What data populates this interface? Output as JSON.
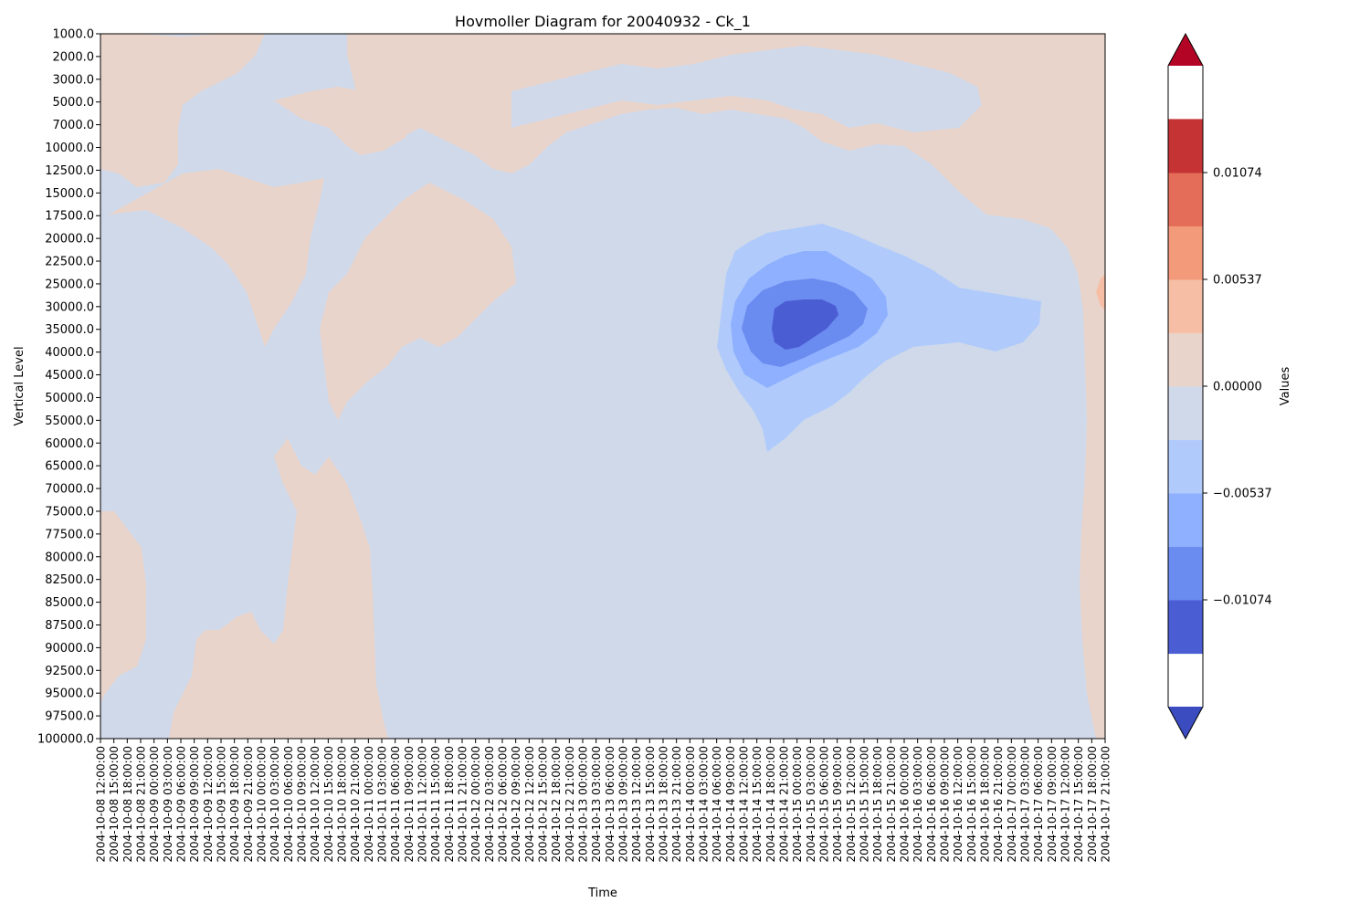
{
  "chart_data": {
    "type": "heatmap",
    "subtype": "filled-contour",
    "title": "Hovmoller Diagram for 20040932 - Ck_1",
    "xlabel": "Time",
    "ylabel": "Vertical Level",
    "x_ticks": [
      "2004-10-08 12:00:00",
      "2004-10-08 15:00:00",
      "2004-10-08 18:00:00",
      "2004-10-08 21:00:00",
      "2004-10-09 00:00:00",
      "2004-10-09 03:00:00",
      "2004-10-09 06:00:00",
      "2004-10-09 09:00:00",
      "2004-10-09 12:00:00",
      "2004-10-09 15:00:00",
      "2004-10-09 18:00:00",
      "2004-10-09 21:00:00",
      "2004-10-10 00:00:00",
      "2004-10-10 03:00:00",
      "2004-10-10 06:00:00",
      "2004-10-10 09:00:00",
      "2004-10-10 12:00:00",
      "2004-10-10 15:00:00",
      "2004-10-10 18:00:00",
      "2004-10-10 21:00:00",
      "2004-10-11 00:00:00",
      "2004-10-11 03:00:00",
      "2004-10-11 06:00:00",
      "2004-10-11 09:00:00",
      "2004-10-11 12:00:00",
      "2004-10-11 15:00:00",
      "2004-10-11 18:00:00",
      "2004-10-11 21:00:00",
      "2004-10-12 00:00:00",
      "2004-10-12 03:00:00",
      "2004-10-12 06:00:00",
      "2004-10-12 09:00:00",
      "2004-10-12 12:00:00",
      "2004-10-12 15:00:00",
      "2004-10-12 18:00:00",
      "2004-10-12 21:00:00",
      "2004-10-13 00:00:00",
      "2004-10-13 03:00:00",
      "2004-10-13 06:00:00",
      "2004-10-13 09:00:00",
      "2004-10-13 12:00:00",
      "2004-10-13 15:00:00",
      "2004-10-13 18:00:00",
      "2004-10-13 21:00:00",
      "2004-10-14 00:00:00",
      "2004-10-14 03:00:00",
      "2004-10-14 06:00:00",
      "2004-10-14 09:00:00",
      "2004-10-14 12:00:00",
      "2004-10-14 15:00:00",
      "2004-10-14 18:00:00",
      "2004-10-14 21:00:00",
      "2004-10-15 00:00:00",
      "2004-10-15 03:00:00",
      "2004-10-15 06:00:00",
      "2004-10-15 09:00:00",
      "2004-10-15 12:00:00",
      "2004-10-15 15:00:00",
      "2004-10-15 18:00:00",
      "2004-10-15 21:00:00",
      "2004-10-16 00:00:00",
      "2004-10-16 03:00:00",
      "2004-10-16 06:00:00",
      "2004-10-16 09:00:00",
      "2004-10-16 12:00:00",
      "2004-10-16 15:00:00",
      "2004-10-16 18:00:00",
      "2004-10-16 21:00:00",
      "2004-10-17 00:00:00",
      "2004-10-17 03:00:00",
      "2004-10-17 06:00:00",
      "2004-10-17 09:00:00",
      "2004-10-17 12:00:00",
      "2004-10-17 15:00:00",
      "2004-10-17 18:00:00",
      "2004-10-17 21:00:00"
    ],
    "y_ticks": [
      "1000.0",
      "2000.0",
      "3000.0",
      "5000.0",
      "7000.0",
      "10000.0",
      "12500.0",
      "15000.0",
      "17500.0",
      "20000.0",
      "22500.0",
      "25000.0",
      "30000.0",
      "35000.0",
      "40000.0",
      "45000.0",
      "50000.0",
      "55000.0",
      "60000.0",
      "65000.0",
      "70000.0",
      "75000.0",
      "77500.0",
      "80000.0",
      "82500.0",
      "85000.0",
      "87500.0",
      "90000.0",
      "92500.0",
      "95000.0",
      "97500.0",
      "100000.0"
    ],
    "y_axis": "categorical, 1000.0 at top, 100000.0 at bottom",
    "colorbar": {
      "label": "Values",
      "tick_labels": [
        "0.01074",
        "0.00537",
        "0.00000",
        "−0.00537",
        "−0.01074"
      ],
      "tick_values": [
        0.01074,
        0.00537,
        0.0,
        -0.00537,
        -0.01074
      ],
      "levels": [
        -0.01611,
        -0.01343,
        -0.01074,
        -0.00806,
        -0.00537,
        -0.00269,
        0.0,
        0.00269,
        0.00537,
        0.00806,
        0.01074,
        0.01343,
        0.01611
      ],
      "colors_bottom_to_top": [
        "#4b5dd3",
        "#6a8bef",
        "#8fb0fe",
        "#b0cbfb",
        "#cfd9ea",
        "#e9d4cb",
        "#f6bfa5",
        "#f39a7b",
        "#e36d58",
        "#c53334"
      ],
      "extend": "both",
      "over_color": "#b40426",
      "under_color": "#3b4cc0",
      "colormap": "coolwarm"
    },
    "grid": false,
    "notable_features": [
      {
        "description": "negative core minimum below -0.01074",
        "time_range": [
          "2004-10-14 21:00:00",
          "2004-10-15 09:00:00"
        ],
        "level_range": [
          "30000.0",
          "40000.0"
        ]
      },
      {
        "description": "negative region down to -0.00537 or lower",
        "time_range": [
          "2004-10-14 09:00:00",
          "2004-10-17 06:00:00"
        ],
        "level_range": [
          "20000.0",
          "60000.0"
        ]
      },
      {
        "description": "small positive spot near right edge",
        "time_range": [
          "2004-10-17 21:00:00",
          "2004-10-17 21:00:00"
        ],
        "level_range": [
          "25000.0",
          "30000.0"
        ]
      }
    ]
  }
}
